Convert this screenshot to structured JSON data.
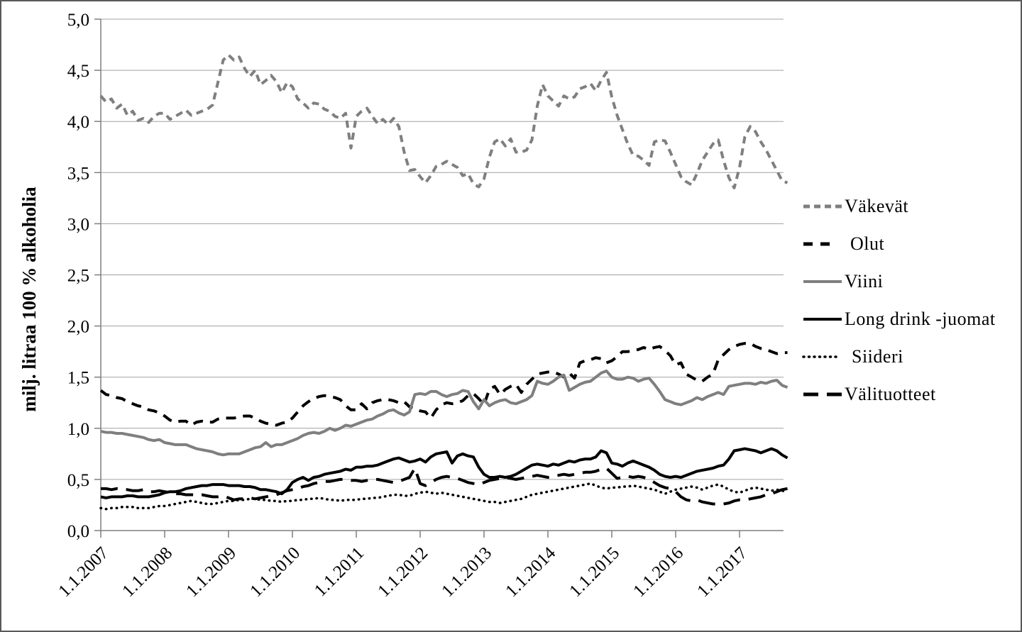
{
  "figure": {
    "background": "#ffffff",
    "frame_color": "#595959",
    "grid_color": "#a0a0a0",
    "axis_color": "#7f7f7f",
    "text_color": "#000000"
  },
  "y_axis": {
    "title": "milj. litraa 100 % alkoholia",
    "tick_labels": [
      "5,0",
      "4,5",
      "4,0",
      "3,5",
      "3,0",
      "2,5",
      "2,0",
      "1,5",
      "1,0",
      "0,5",
      "0,0"
    ]
  },
  "x_axis": {
    "tick_labels": [
      "1.1.2007",
      "1.1.2008",
      "1.1.2009",
      "1.1.2010",
      "1.1.2011",
      "1.1.2012",
      "1.1.2013",
      "1.1.2014",
      "1.1.2015",
      "1.1.2016",
      "1.1.2017"
    ]
  },
  "chart_data": {
    "type": "line",
    "title": "",
    "xlabel": "",
    "ylabel": "milj. litraa 100 % alkoholia",
    "ylim": [
      0.0,
      5.0
    ],
    "y_step": 0.5,
    "grid": "horizontal",
    "legend_position": "right",
    "x_start": "1.2007",
    "x_end": "10.2017",
    "x_frequency": "monthly",
    "n_points": 130,
    "series": [
      {
        "name": "Väkevät",
        "color": "#7f7f7f",
        "line_style": "dash-short",
        "values": [
          4.25,
          4.19,
          4.22,
          4.13,
          4.17,
          4.06,
          4.1,
          4.01,
          4.03,
          3.99,
          4.05,
          4.08,
          4.08,
          4.02,
          4.05,
          4.08,
          4.11,
          4.06,
          4.08,
          4.1,
          4.12,
          4.16,
          4.38,
          4.6,
          4.65,
          4.6,
          4.63,
          4.52,
          4.44,
          4.5,
          4.36,
          4.4,
          4.45,
          4.39,
          4.28,
          4.38,
          4.34,
          4.22,
          4.18,
          4.13,
          4.18,
          4.17,
          4.12,
          4.1,
          4.05,
          4.03,
          4.08,
          3.74,
          4.05,
          4.1,
          4.13,
          4.05,
          3.98,
          4.02,
          3.97,
          4.03,
          3.95,
          3.7,
          3.52,
          3.53,
          3.46,
          3.4,
          3.47,
          3.56,
          3.58,
          3.61,
          3.58,
          3.55,
          3.47,
          3.49,
          3.39,
          3.36,
          3.44,
          3.65,
          3.8,
          3.83,
          3.76,
          3.83,
          3.7,
          3.7,
          3.72,
          3.82,
          4.15,
          4.36,
          4.25,
          4.2,
          4.15,
          4.25,
          4.22,
          4.24,
          4.32,
          4.34,
          4.37,
          4.3,
          4.4,
          4.48,
          4.24,
          4.06,
          3.92,
          3.78,
          3.67,
          3.66,
          3.62,
          3.57,
          3.8,
          3.82,
          3.81,
          3.7,
          3.58,
          3.46,
          3.41,
          3.38,
          3.49,
          3.62,
          3.7,
          3.78,
          3.82,
          3.62,
          3.45,
          3.35,
          3.55,
          3.85,
          3.95,
          3.9,
          3.8,
          3.72,
          3.62,
          3.52,
          3.42,
          3.4
        ]
      },
      {
        "name": "Olut",
        "color": "#000000",
        "line_style": "dash-med",
        "values": [
          1.37,
          1.33,
          1.32,
          1.3,
          1.29,
          1.26,
          1.24,
          1.22,
          1.21,
          1.18,
          1.17,
          1.15,
          1.12,
          1.08,
          1.06,
          1.07,
          1.07,
          1.03,
          1.06,
          1.07,
          1.06,
          1.06,
          1.09,
          1.1,
          1.1,
          1.1,
          1.11,
          1.12,
          1.12,
          1.1,
          1.07,
          1.05,
          1.04,
          1.03,
          1.05,
          1.06,
          1.1,
          1.16,
          1.22,
          1.26,
          1.29,
          1.31,
          1.32,
          1.31,
          1.3,
          1.28,
          1.22,
          1.18,
          1.18,
          1.24,
          1.19,
          1.25,
          1.27,
          1.28,
          1.28,
          1.27,
          1.25,
          1.26,
          1.21,
          1.19,
          1.17,
          1.16,
          1.1,
          1.18,
          1.23,
          1.25,
          1.24,
          1.25,
          1.27,
          1.32,
          1.34,
          1.29,
          1.23,
          1.38,
          1.41,
          1.33,
          1.38,
          1.41,
          1.43,
          1.35,
          1.43,
          1.48,
          1.53,
          1.54,
          1.55,
          1.55,
          1.53,
          1.5,
          1.54,
          1.49,
          1.64,
          1.66,
          1.67,
          1.69,
          1.68,
          1.64,
          1.66,
          1.7,
          1.75,
          1.75,
          1.76,
          1.77,
          1.79,
          1.77,
          1.79,
          1.8,
          1.76,
          1.71,
          1.62,
          1.64,
          1.53,
          1.5,
          1.47,
          1.46,
          1.5,
          1.53,
          1.67,
          1.72,
          1.77,
          1.8,
          1.82,
          1.83,
          1.83,
          1.8,
          1.78,
          1.77,
          1.75,
          1.73,
          1.74,
          1.74
        ]
      },
      {
        "name": "Viini",
        "color": "#7f7f7f",
        "line_style": "solid",
        "values": [
          0.97,
          0.96,
          0.96,
          0.95,
          0.95,
          0.94,
          0.93,
          0.92,
          0.91,
          0.89,
          0.88,
          0.89,
          0.86,
          0.85,
          0.84,
          0.84,
          0.84,
          0.82,
          0.8,
          0.79,
          0.78,
          0.77,
          0.75,
          0.74,
          0.75,
          0.75,
          0.75,
          0.77,
          0.79,
          0.81,
          0.82,
          0.86,
          0.82,
          0.84,
          0.84,
          0.86,
          0.88,
          0.9,
          0.93,
          0.95,
          0.96,
          0.95,
          0.97,
          1.0,
          0.98,
          1.0,
          1.03,
          1.02,
          1.04,
          1.06,
          1.08,
          1.09,
          1.12,
          1.14,
          1.17,
          1.18,
          1.15,
          1.13,
          1.16,
          1.33,
          1.34,
          1.33,
          1.36,
          1.36,
          1.33,
          1.31,
          1.33,
          1.34,
          1.37,
          1.36,
          1.26,
          1.19,
          1.28,
          1.22,
          1.25,
          1.27,
          1.28,
          1.25,
          1.24,
          1.26,
          1.28,
          1.32,
          1.46,
          1.44,
          1.43,
          1.46,
          1.5,
          1.52,
          1.37,
          1.4,
          1.43,
          1.45,
          1.46,
          1.5,
          1.54,
          1.56,
          1.5,
          1.48,
          1.48,
          1.5,
          1.49,
          1.46,
          1.48,
          1.49,
          1.43,
          1.36,
          1.28,
          1.26,
          1.24,
          1.23,
          1.25,
          1.27,
          1.3,
          1.28,
          1.31,
          1.33,
          1.35,
          1.33,
          1.41,
          1.42,
          1.43,
          1.44,
          1.44,
          1.43,
          1.45,
          1.44,
          1.46,
          1.47,
          1.42,
          1.4
        ]
      },
      {
        "name": "Long drink -juomat",
        "color": "#000000",
        "line_style": "solid",
        "values": [
          0.33,
          0.32,
          0.33,
          0.33,
          0.33,
          0.34,
          0.34,
          0.33,
          0.33,
          0.33,
          0.34,
          0.35,
          0.37,
          0.38,
          0.38,
          0.39,
          0.41,
          0.42,
          0.43,
          0.44,
          0.44,
          0.45,
          0.45,
          0.45,
          0.44,
          0.44,
          0.44,
          0.43,
          0.43,
          0.42,
          0.4,
          0.4,
          0.39,
          0.38,
          0.36,
          0.4,
          0.47,
          0.5,
          0.52,
          0.49,
          0.52,
          0.53,
          0.55,
          0.56,
          0.57,
          0.58,
          0.6,
          0.59,
          0.62,
          0.62,
          0.63,
          0.63,
          0.64,
          0.66,
          0.68,
          0.7,
          0.71,
          0.69,
          0.67,
          0.68,
          0.7,
          0.67,
          0.72,
          0.75,
          0.76,
          0.77,
          0.66,
          0.73,
          0.75,
          0.73,
          0.72,
          0.62,
          0.55,
          0.52,
          0.52,
          0.53,
          0.52,
          0.53,
          0.55,
          0.58,
          0.61,
          0.64,
          0.65,
          0.64,
          0.63,
          0.65,
          0.64,
          0.66,
          0.68,
          0.67,
          0.69,
          0.7,
          0.7,
          0.72,
          0.78,
          0.76,
          0.66,
          0.65,
          0.63,
          0.66,
          0.68,
          0.66,
          0.64,
          0.62,
          0.59,
          0.55,
          0.53,
          0.52,
          0.53,
          0.52,
          0.54,
          0.56,
          0.58,
          0.59,
          0.6,
          0.61,
          0.63,
          0.64,
          0.7,
          0.78,
          0.79,
          0.8,
          0.79,
          0.78,
          0.76,
          0.78,
          0.8,
          0.78,
          0.74,
          0.71
        ]
      },
      {
        "name": "Siideri",
        "color": "#000000",
        "line_style": "dotted",
        "values": [
          0.22,
          0.21,
          0.22,
          0.22,
          0.23,
          0.23,
          0.23,
          0.22,
          0.22,
          0.22,
          0.23,
          0.24,
          0.24,
          0.25,
          0.26,
          0.27,
          0.28,
          0.29,
          0.28,
          0.27,
          0.26,
          0.26,
          0.27,
          0.28,
          0.29,
          0.29,
          0.3,
          0.3,
          0.31,
          0.31,
          0.3,
          0.3,
          0.29,
          0.29,
          0.28,
          0.29,
          0.29,
          0.3,
          0.3,
          0.31,
          0.31,
          0.32,
          0.31,
          0.3,
          0.3,
          0.29,
          0.3,
          0.3,
          0.3,
          0.31,
          0.31,
          0.32,
          0.32,
          0.33,
          0.34,
          0.35,
          0.35,
          0.34,
          0.34,
          0.36,
          0.37,
          0.38,
          0.37,
          0.36,
          0.37,
          0.36,
          0.35,
          0.34,
          0.33,
          0.32,
          0.31,
          0.3,
          0.29,
          0.28,
          0.28,
          0.27,
          0.28,
          0.29,
          0.3,
          0.31,
          0.33,
          0.35,
          0.36,
          0.37,
          0.38,
          0.39,
          0.4,
          0.41,
          0.42,
          0.43,
          0.44,
          0.45,
          0.46,
          0.44,
          0.42,
          0.41,
          0.42,
          0.42,
          0.43,
          0.43,
          0.44,
          0.43,
          0.42,
          0.41,
          0.4,
          0.38,
          0.36,
          0.38,
          0.4,
          0.41,
          0.42,
          0.43,
          0.42,
          0.4,
          0.42,
          0.44,
          0.45,
          0.43,
          0.4,
          0.38,
          0.37,
          0.39,
          0.41,
          0.42,
          0.41,
          0.4,
          0.39,
          0.4,
          0.39,
          0.38
        ]
      },
      {
        "name": "Välituotteet",
        "color": "#000000",
        "line_style": "dash-long",
        "values": [
          0.41,
          0.41,
          0.4,
          0.41,
          0.4,
          0.4,
          0.39,
          0.39,
          0.4,
          0.38,
          0.38,
          0.39,
          0.38,
          0.37,
          0.36,
          0.36,
          0.35,
          0.35,
          0.35,
          0.35,
          0.34,
          0.33,
          0.33,
          0.34,
          0.32,
          0.3,
          0.31,
          0.31,
          0.32,
          0.31,
          0.32,
          0.33,
          0.34,
          0.35,
          0.37,
          0.39,
          0.4,
          0.41,
          0.43,
          0.44,
          0.46,
          0.47,
          0.48,
          0.48,
          0.49,
          0.5,
          0.5,
          0.49,
          0.49,
          0.48,
          0.49,
          0.5,
          0.5,
          0.49,
          0.48,
          0.47,
          0.48,
          0.5,
          0.52,
          0.61,
          0.46,
          0.44,
          0.47,
          0.5,
          0.52,
          0.53,
          0.52,
          0.51,
          0.49,
          0.47,
          0.46,
          0.45,
          0.47,
          0.49,
          0.5,
          0.51,
          0.52,
          0.51,
          0.5,
          0.51,
          0.52,
          0.53,
          0.54,
          0.53,
          0.52,
          0.53,
          0.54,
          0.55,
          0.54,
          0.55,
          0.56,
          0.57,
          0.57,
          0.58,
          0.6,
          0.61,
          0.56,
          0.51,
          0.52,
          0.53,
          0.52,
          0.53,
          0.52,
          0.5,
          0.47,
          0.44,
          0.42,
          0.41,
          0.38,
          0.33,
          0.3,
          0.29,
          0.3,
          0.28,
          0.27,
          0.26,
          0.26,
          0.26,
          0.27,
          0.29,
          0.3,
          0.3,
          0.31,
          0.32,
          0.33,
          0.35,
          0.36,
          0.38,
          0.4,
          0.41
        ]
      }
    ]
  }
}
